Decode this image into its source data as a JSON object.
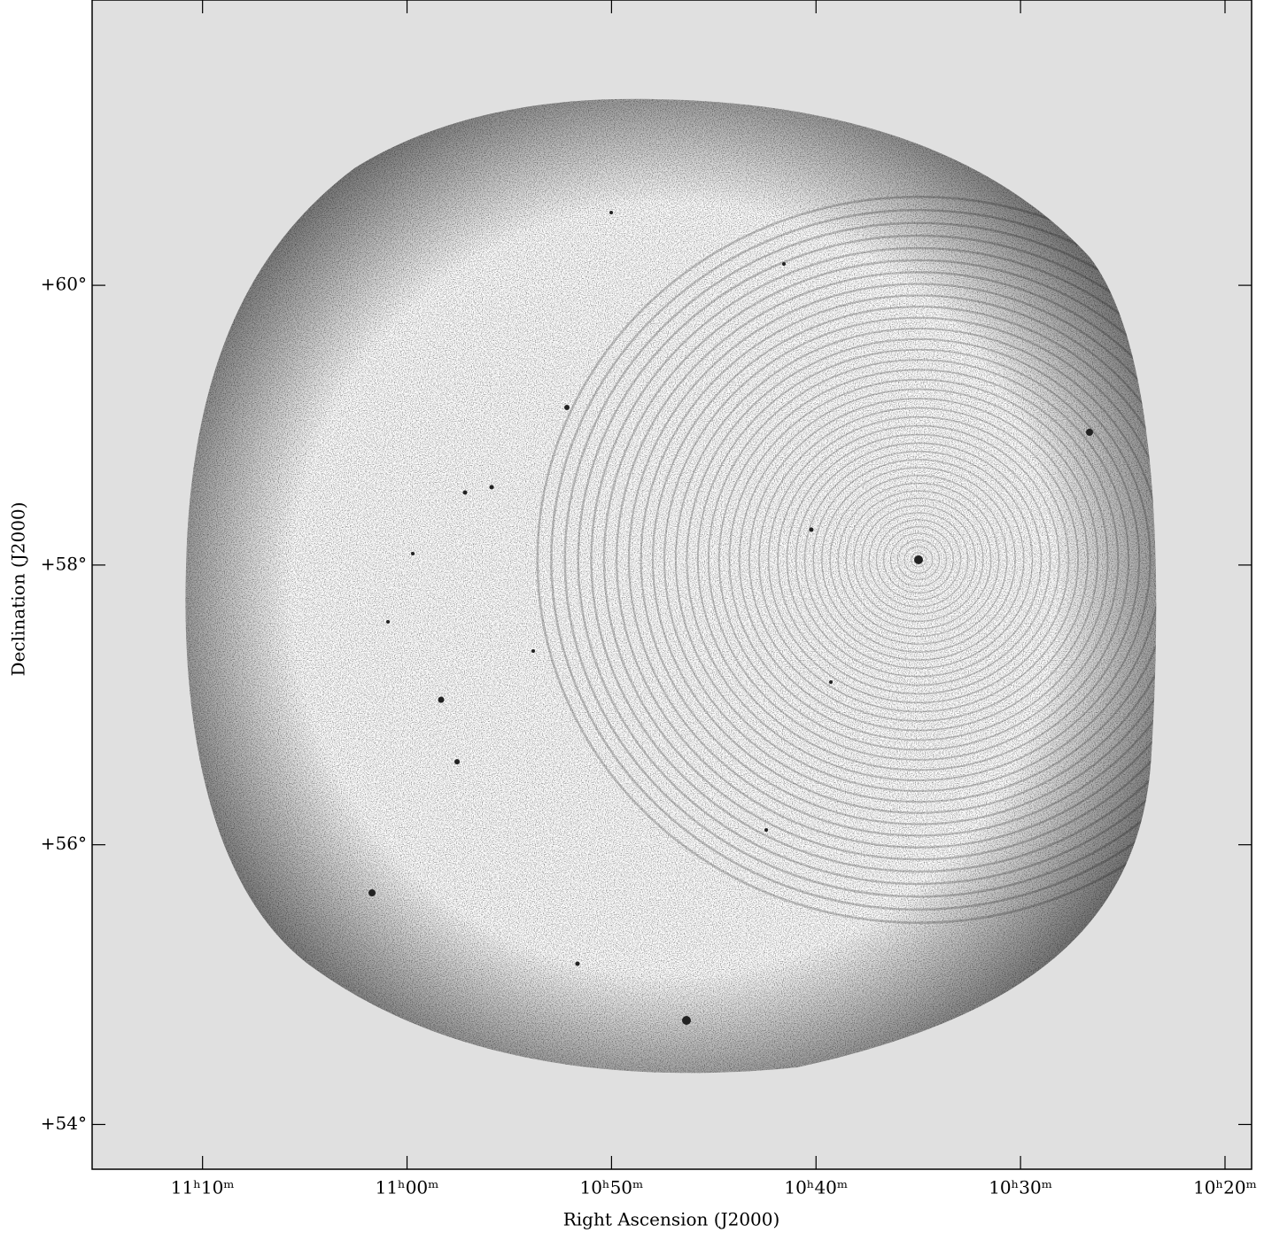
{
  "chart_data": {
    "type": "image",
    "xlabel": "Right Ascension (J2000)",
    "ylabel": "Declination (J2000)",
    "xlim": [
      675.4,
      618.7
    ],
    "ylim": [
      53.68,
      62.04
    ],
    "xticks": [
      {
        "value": 670,
        "label": "11ʰ10ᵐ"
      },
      {
        "value": 660,
        "label": "11ʰ00ᵐ"
      },
      {
        "value": 650,
        "label": "10ʰ50ᵐ"
      },
      {
        "value": 640,
        "label": "10ʰ40ᵐ"
      },
      {
        "value": 630,
        "label": "10ʰ30ᵐ"
      },
      {
        "value": 620,
        "label": "10ʰ20ᵐ"
      }
    ],
    "yticks": [
      {
        "value": 60,
        "label": "+60°"
      },
      {
        "value": 58,
        "label": "+58°"
      },
      {
        "value": 56,
        "label": "+56°"
      },
      {
        "value": 54,
        "label": "+54°"
      }
    ]
  }
}
